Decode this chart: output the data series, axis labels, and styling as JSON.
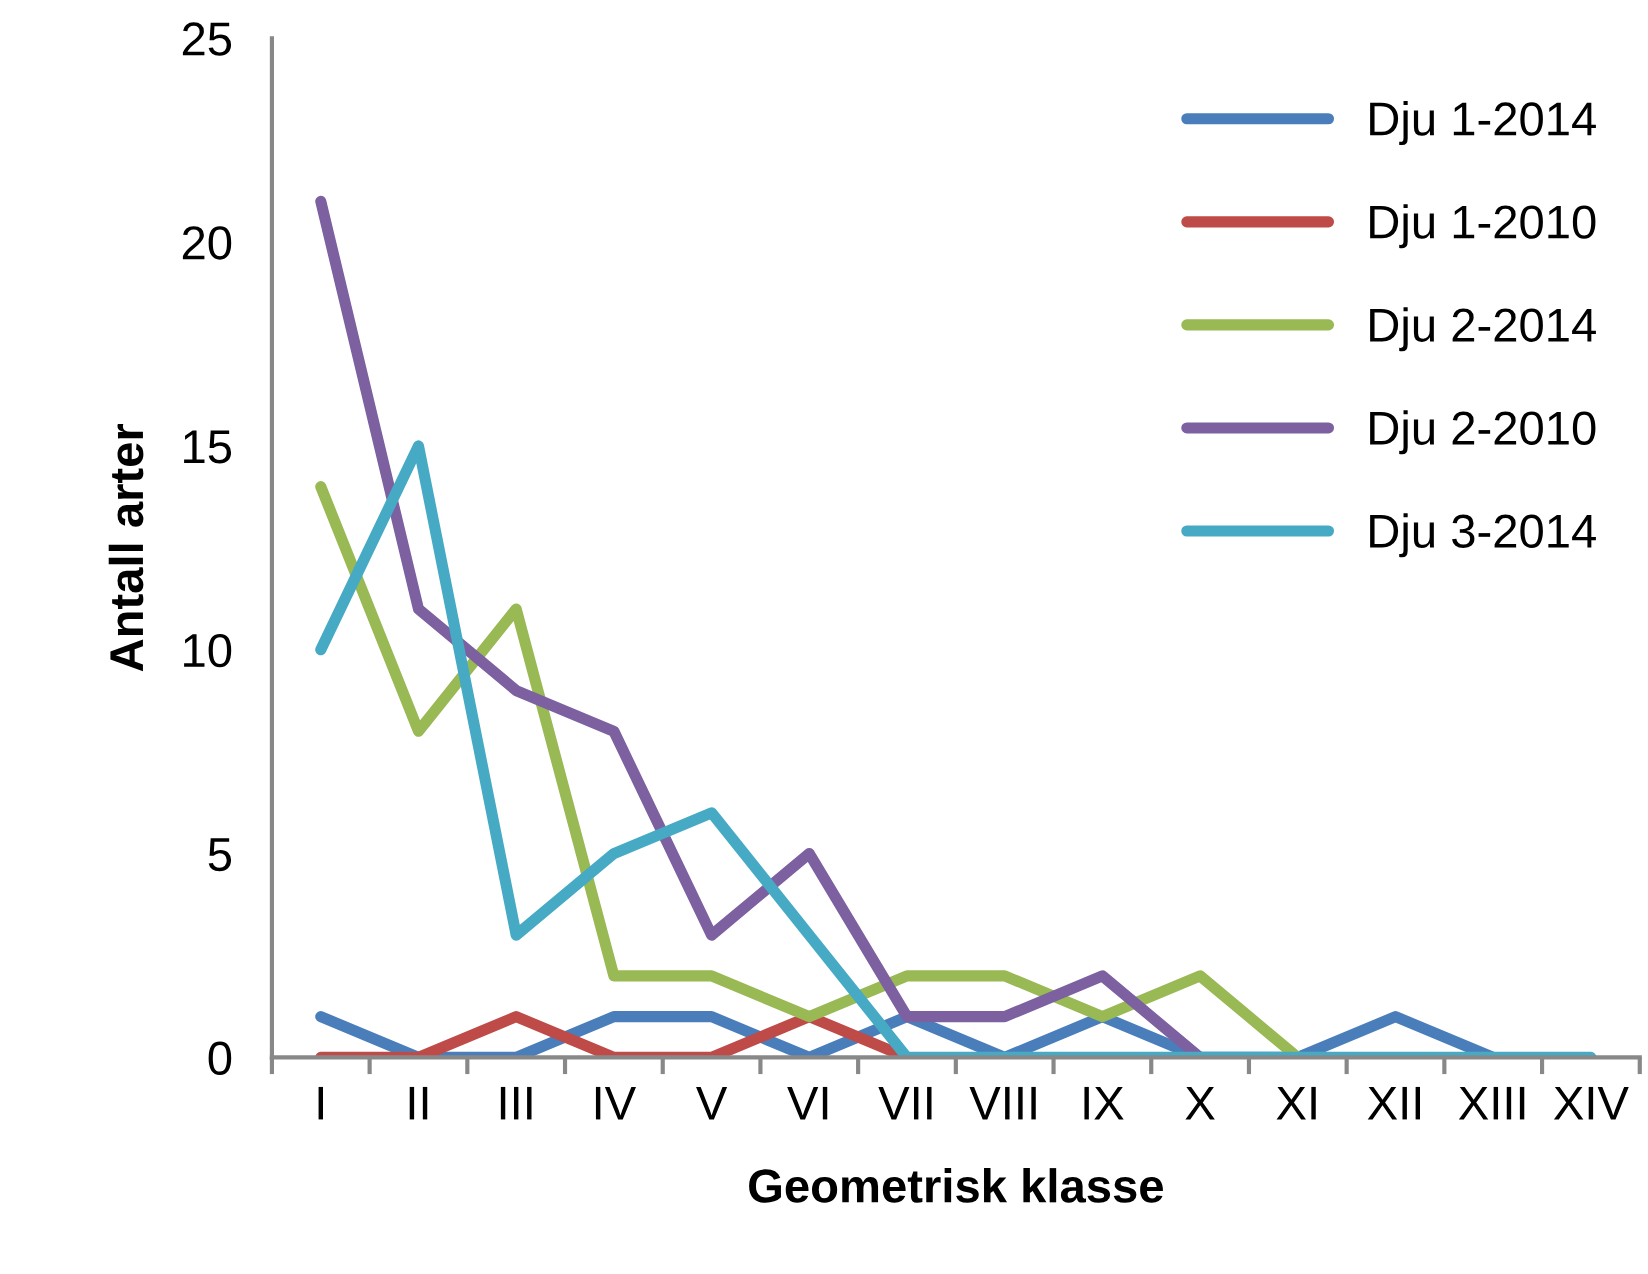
{
  "chart_data": {
    "type": "line",
    "xlabel": "Geometrisk klasse",
    "ylabel": "Antall arter",
    "categories": [
      "I",
      "II",
      "III",
      "IV",
      "V",
      "VI",
      "VII",
      "VIII",
      "IX",
      "X",
      "XI",
      "XII",
      "XIII",
      "XIV"
    ],
    "series": [
      {
        "name": "Dju 1-2014",
        "color": "#4a7ebb",
        "values": [
          1,
          0,
          0,
          1,
          1,
          0,
          1,
          0,
          1,
          0,
          0,
          1,
          0,
          null
        ]
      },
      {
        "name": "Dju 1-2010",
        "color": "#be4b48",
        "values": [
          0,
          0,
          1,
          0,
          0,
          1,
          0,
          null,
          null,
          null,
          null,
          null,
          null,
          null
        ]
      },
      {
        "name": "Dju 2-2014",
        "color": "#98b954",
        "values": [
          14,
          8,
          11,
          2,
          2,
          1,
          2,
          2,
          1,
          2,
          0,
          null,
          null,
          null
        ]
      },
      {
        "name": "Dju 2-2010",
        "color": "#7d60a0",
        "values": [
          21,
          11,
          9,
          8,
          3,
          5,
          1,
          1,
          2,
          0,
          null,
          null,
          null,
          null
        ]
      },
      {
        "name": "Dju 3-2014",
        "color": "#46aac5",
        "values": [
          10,
          15,
          3,
          5,
          6,
          3,
          0,
          0,
          0,
          0,
          0,
          0,
          0,
          0
        ]
      }
    ],
    "ylim": [
      0,
      25
    ],
    "yticks": [
      0,
      5,
      10,
      15,
      20,
      25
    ],
    "grid": false,
    "legend": "top right",
    "marker": "none",
    "line_style": "solid"
  }
}
